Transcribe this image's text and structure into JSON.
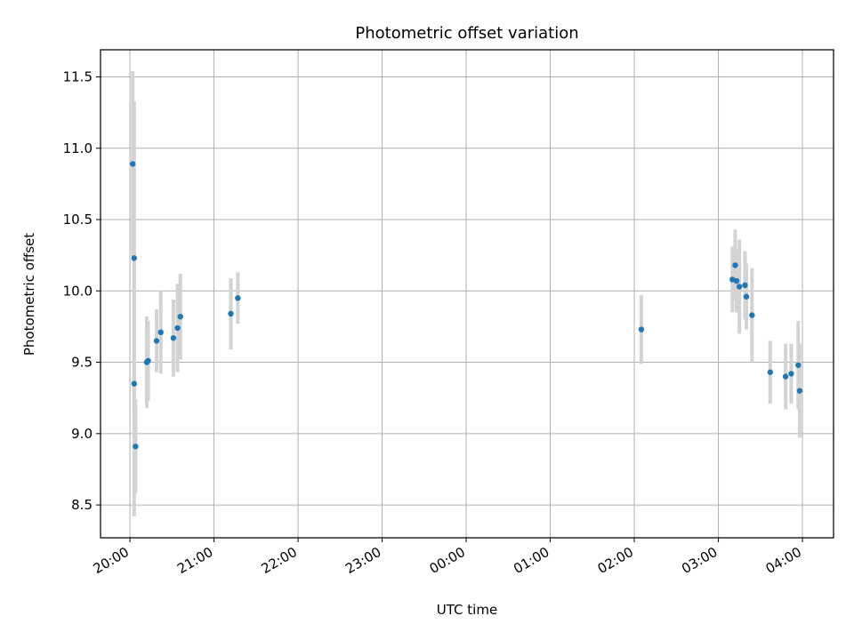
{
  "chart_data": {
    "type": "scatter",
    "title": "Photometric offset variation",
    "xlabel": "UTC time",
    "ylabel": "Photometric offset",
    "x_tick_labels": [
      "20:00",
      "21:00",
      "22:00",
      "23:00",
      "00:00",
      "01:00",
      "02:00",
      "03:00",
      "04:00"
    ],
    "x_ticks_hours": [
      0,
      1,
      2,
      3,
      4,
      5,
      6,
      7,
      8
    ],
    "x_origin": "20:00",
    "xlim_hours": [
      -0.35,
      8.37
    ],
    "y_ticks": [
      8.5,
      9.0,
      9.5,
      10.0,
      10.5,
      11.0,
      11.5
    ],
    "y_tick_labels": [
      "8.5",
      "9.0",
      "9.5",
      "10.0",
      "10.5",
      "11.0",
      "11.5"
    ],
    "ylim": [
      8.27,
      11.69
    ],
    "grid": true,
    "colors": {
      "marker": "#1f77b4",
      "errorbar": "#d3d3d3",
      "grid": "#b0b0b0"
    },
    "points": [
      {
        "time": "20:02",
        "y": 10.89,
        "err": 0.65
      },
      {
        "time": "20:03",
        "y": 10.23,
        "err": 1.1
      },
      {
        "time": "20:03",
        "y": 9.35,
        "err": 0.93
      },
      {
        "time": "20:04",
        "y": 8.91,
        "err": 0.33
      },
      {
        "time": "20:12",
        "y": 9.5,
        "err": 0.32
      },
      {
        "time": "20:13",
        "y": 9.51,
        "err": 0.28
      },
      {
        "time": "20:19",
        "y": 9.65,
        "err": 0.22
      },
      {
        "time": "20:22",
        "y": 9.71,
        "err": 0.29
      },
      {
        "time": "20:31",
        "y": 9.67,
        "err": 0.27
      },
      {
        "time": "20:34",
        "y": 9.74,
        "err": 0.31
      },
      {
        "time": "20:36",
        "y": 9.82,
        "err": 0.3
      },
      {
        "time": "21:12",
        "y": 9.84,
        "err": 0.25
      },
      {
        "time": "21:17",
        "y": 9.95,
        "err": 0.18
      },
      {
        "time": "02:05",
        "y": 9.73,
        "err": 0.24
      },
      {
        "time": "03:10",
        "y": 10.08,
        "err": 0.23
      },
      {
        "time": "03:12",
        "y": 10.18,
        "err": 0.25
      },
      {
        "time": "03:13",
        "y": 10.07,
        "err": 0.22
      },
      {
        "time": "03:15",
        "y": 10.03,
        "err": 0.33
      },
      {
        "time": "03:19",
        "y": 10.04,
        "err": 0.24
      },
      {
        "time": "03:20",
        "y": 9.96,
        "err": 0.23
      },
      {
        "time": "03:24",
        "y": 9.83,
        "err": 0.33
      },
      {
        "time": "03:37",
        "y": 9.43,
        "err": 0.22
      },
      {
        "time": "03:48",
        "y": 9.4,
        "err": 0.23
      },
      {
        "time": "03:52",
        "y": 9.42,
        "err": 0.21
      },
      {
        "time": "03:57",
        "y": 9.48,
        "err": 0.31
      },
      {
        "time": "03:58",
        "y": 9.3,
        "err": 0.33
      }
    ]
  }
}
